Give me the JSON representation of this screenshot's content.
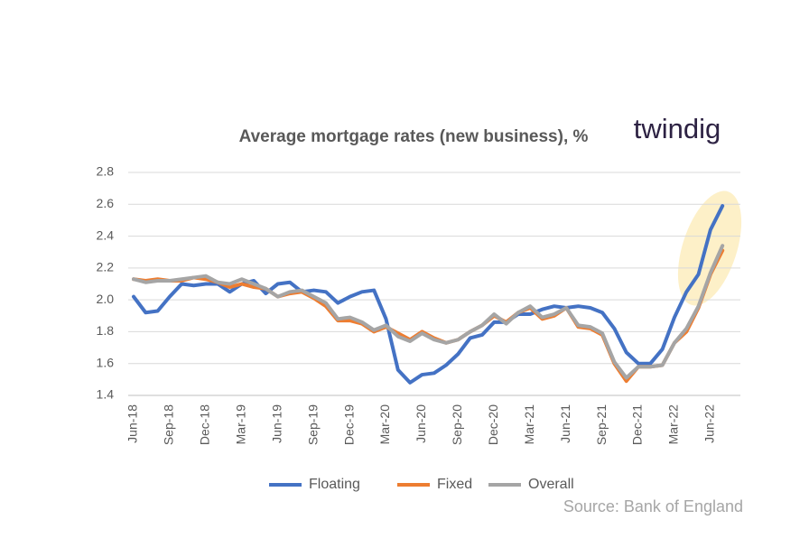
{
  "chart_data": {
    "type": "line",
    "title": "Average mortgage rates (new business), %",
    "logo": "twindig",
    "source": "Source: Bank of England",
    "categories": [
      "Jun-18",
      null,
      null,
      "Sep-18",
      null,
      null,
      "Dec-18",
      null,
      null,
      "Mar-19",
      null,
      null,
      "Jun-19",
      null,
      null,
      "Sep-19",
      null,
      null,
      "Dec-19",
      null,
      null,
      "Mar-20",
      null,
      null,
      "Jun-20",
      null,
      null,
      "Sep-20",
      null,
      null,
      "Dec-20",
      null,
      null,
      "Mar-21",
      null,
      null,
      "Jun-21",
      null,
      null,
      "Sep-21",
      null,
      null,
      "Dec-21",
      null,
      null,
      "Mar-22",
      null,
      null,
      "Jun-22",
      null
    ],
    "series": [
      {
        "name": "Floating",
        "color": "#4472c4",
        "values": [
          2.02,
          1.92,
          1.93,
          2.02,
          2.1,
          2.09,
          2.1,
          2.1,
          2.05,
          2.1,
          2.12,
          2.04,
          2.1,
          2.11,
          2.05,
          2.06,
          2.05,
          1.98,
          2.02,
          2.05,
          2.06,
          1.88,
          1.56,
          1.48,
          1.53,
          1.54,
          1.59,
          1.66,
          1.76,
          1.78,
          1.86,
          1.86,
          1.91,
          1.91,
          1.94,
          1.96,
          1.95,
          1.96,
          1.95,
          1.92,
          1.82,
          1.67,
          1.6,
          1.6,
          1.69,
          1.89,
          2.05,
          2.16,
          2.44,
          2.59
        ]
      },
      {
        "name": "Fixed",
        "color": "#ed7d31",
        "values": [
          2.13,
          2.12,
          2.13,
          2.12,
          2.12,
          2.14,
          2.13,
          2.11,
          2.08,
          2.1,
          2.08,
          2.07,
          2.02,
          2.04,
          2.05,
          2.01,
          1.96,
          1.87,
          1.87,
          1.85,
          1.8,
          1.83,
          1.79,
          1.75,
          1.8,
          1.76,
          1.73,
          1.75,
          1.8,
          1.84,
          1.9,
          1.86,
          1.92,
          1.95,
          1.88,
          1.9,
          1.95,
          1.83,
          1.82,
          1.78,
          1.6,
          1.49,
          1.58,
          1.58,
          1.59,
          1.73,
          1.8,
          1.95,
          2.16,
          2.31
        ]
      },
      {
        "name": "Overall",
        "color": "#a5a5a5",
        "values": [
          2.13,
          2.11,
          2.12,
          2.12,
          2.13,
          2.14,
          2.15,
          2.11,
          2.1,
          2.13,
          2.1,
          2.07,
          2.02,
          2.05,
          2.06,
          2.02,
          1.98,
          1.88,
          1.89,
          1.86,
          1.81,
          1.84,
          1.77,
          1.74,
          1.79,
          1.75,
          1.73,
          1.75,
          1.8,
          1.84,
          1.91,
          1.85,
          1.92,
          1.96,
          1.89,
          1.91,
          1.95,
          1.84,
          1.83,
          1.79,
          1.61,
          1.51,
          1.58,
          1.58,
          1.59,
          1.73,
          1.82,
          1.96,
          2.17,
          2.34
        ]
      }
    ],
    "ylim": [
      1.4,
      2.8
    ],
    "yticks": [
      1.4,
      1.6,
      1.8,
      {
        "value": 2,
        "label": "2.0"
      },
      2.2,
      2.4,
      2.6,
      2.8
    ],
    "grid": true
  }
}
